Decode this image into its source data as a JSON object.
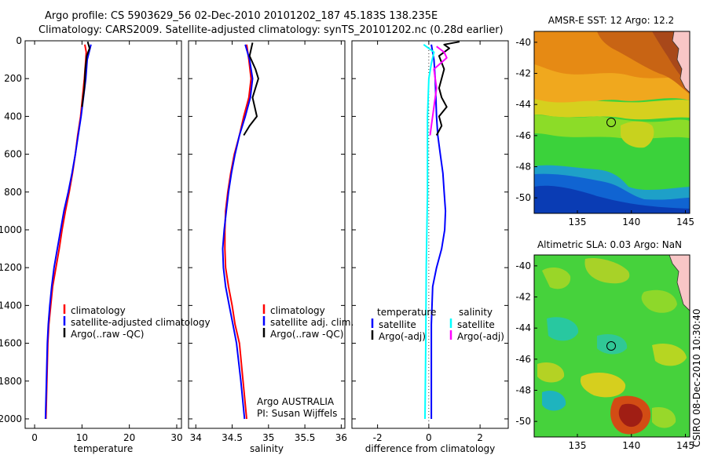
{
  "header": {
    "line1": "Argo profile: CS 5903629_56 02-Dec-2010 20101202_187 45.183S 138.235E",
    "line2": "Climatology: CARS2009. Satellite-adjusted climatology: synTS_20101202.nc (0.28d earlier)"
  },
  "side_label": "CSIRO 08-Dec-2010 10:30:40",
  "colors": {
    "red": "#ff0000",
    "blue": "#0000ff",
    "black": "#000000",
    "cyan": "#00ffff",
    "magenta": "#ff00ff"
  },
  "chart_data": [
    {
      "type": "line",
      "panel": "temperature",
      "xlabel": "temperature",
      "xlim": [
        -2,
        31
      ],
      "ylim": [
        2050,
        0
      ],
      "xticks": [
        0,
        10,
        20,
        30
      ],
      "yticks": [
        0,
        200,
        400,
        600,
        800,
        1000,
        1200,
        1400,
        1600,
        1800,
        2000
      ],
      "legend": [
        "climatology",
        "satellite-adjusted climatology",
        "Argo(..raw -QC)"
      ],
      "series": [
        {
          "name": "climatology",
          "color": "red",
          "points": [
            [
              10.6,
              20
            ],
            [
              10.9,
              60
            ],
            [
              10.8,
              100
            ],
            [
              10.5,
              200
            ],
            [
              10.1,
              300
            ],
            [
              9.7,
              400
            ],
            [
              9.1,
              500
            ],
            [
              8.6,
              600
            ],
            [
              8.0,
              700
            ],
            [
              7.3,
              800
            ],
            [
              6.5,
              900
            ],
            [
              5.8,
              1000
            ],
            [
              5.2,
              1100
            ],
            [
              4.5,
              1200
            ],
            [
              3.8,
              1300
            ],
            [
              3.4,
              1400
            ],
            [
              3.0,
              1500
            ],
            [
              2.8,
              1600
            ],
            [
              2.6,
              1800
            ],
            [
              2.4,
              2000
            ]
          ]
        },
        {
          "name": "satellite-adjusted climatology",
          "color": "blue",
          "points": [
            [
              11.9,
              20
            ],
            [
              11.5,
              60
            ],
            [
              11.1,
              100
            ],
            [
              10.8,
              200
            ],
            [
              10.3,
              300
            ],
            [
              9.8,
              400
            ],
            [
              9.2,
              500
            ],
            [
              8.6,
              600
            ],
            [
              7.9,
              700
            ],
            [
              7.1,
              800
            ],
            [
              6.2,
              900
            ],
            [
              5.5,
              1000
            ],
            [
              4.8,
              1100
            ],
            [
              4.1,
              1200
            ],
            [
              3.6,
              1300
            ],
            [
              3.2,
              1400
            ],
            [
              2.9,
              1500
            ],
            [
              2.7,
              1600
            ],
            [
              2.5,
              1800
            ],
            [
              2.3,
              2000
            ]
          ]
        },
        {
          "name": "Argo(..raw -QC)",
          "color": "black",
          "points": [
            [
              11.2,
              5
            ],
            [
              11.6,
              40
            ],
            [
              11.0,
              80
            ],
            [
              10.7,
              150
            ],
            [
              10.5,
              250
            ],
            [
              10.0,
              350
            ]
          ]
        }
      ]
    },
    {
      "type": "line",
      "panel": "salinity",
      "xlabel": "salinity",
      "xlim": [
        33.9,
        36.05
      ],
      "ylim": [
        2050,
        0
      ],
      "xticks": [
        34,
        34.5,
        35,
        35.5,
        36
      ],
      "legend": [
        "climatology",
        "satellite adj. clim.",
        "Argo(..raw -QC)"
      ],
      "annotation": [
        "Argo AUSTRALIA",
        "PI: Susan Wijffels"
      ],
      "series": [
        {
          "name": "climatology",
          "color": "red",
          "points": [
            [
              34.7,
              20
            ],
            [
              34.73,
              100
            ],
            [
              34.76,
              200
            ],
            [
              34.73,
              300
            ],
            [
              34.66,
              400
            ],
            [
              34.6,
              500
            ],
            [
              34.53,
              600
            ],
            [
              34.48,
              700
            ],
            [
              34.44,
              800
            ],
            [
              34.41,
              900
            ],
            [
              34.4,
              1000
            ],
            [
              34.4,
              1100
            ],
            [
              34.41,
              1200
            ],
            [
              34.45,
              1300
            ],
            [
              34.5,
              1400
            ],
            [
              34.54,
              1500
            ],
            [
              34.6,
              1600
            ],
            [
              34.65,
              1800
            ],
            [
              34.7,
              2000
            ]
          ]
        },
        {
          "name": "satellite adj. clim.",
          "color": "blue",
          "points": [
            [
              34.68,
              20
            ],
            [
              34.74,
              100
            ],
            [
              34.78,
              200
            ],
            [
              34.75,
              300
            ],
            [
              34.68,
              400
            ],
            [
              34.6,
              500
            ],
            [
              34.54,
              600
            ],
            [
              34.49,
              700
            ],
            [
              34.45,
              800
            ],
            [
              34.42,
              900
            ],
            [
              34.39,
              1000
            ],
            [
              34.37,
              1100
            ],
            [
              34.38,
              1200
            ],
            [
              34.41,
              1300
            ],
            [
              34.46,
              1400
            ],
            [
              34.51,
              1500
            ],
            [
              34.56,
              1600
            ],
            [
              34.62,
              1800
            ],
            [
              34.67,
              2000
            ]
          ]
        },
        {
          "name": "Argo(..raw -QC)",
          "color": "black",
          "points": [
            [
              34.78,
              10
            ],
            [
              34.74,
              80
            ],
            [
              34.82,
              150
            ],
            [
              34.86,
              200
            ],
            [
              34.78,
              300
            ],
            [
              34.84,
              400
            ],
            [
              34.74,
              450
            ],
            [
              34.66,
              500
            ]
          ]
        }
      ]
    },
    {
      "type": "line",
      "panel": "difference",
      "xlabel": "difference from climatology",
      "xlim": [
        -3,
        3.1
      ],
      "ylim": [
        2050,
        0
      ],
      "xticks": [
        -2,
        0,
        2
      ],
      "legend_left_title": "temperature",
      "legend_right_title": "salinity",
      "legend": [
        "satellite",
        "Argo(-adj)",
        "satellite",
        "Argo(-adj)"
      ],
      "series": [
        {
          "name": "temperature satellite",
          "color": "blue",
          "points": [
            [
              0.1,
              20
            ],
            [
              0.2,
              100
            ],
            [
              0.25,
              200
            ],
            [
              0.3,
              400
            ],
            [
              0.35,
              500
            ],
            [
              0.45,
              600
            ],
            [
              0.55,
              700
            ],
            [
              0.6,
              800
            ],
            [
              0.65,
              900
            ],
            [
              0.62,
              1000
            ],
            [
              0.5,
              1100
            ],
            [
              0.3,
              1200
            ],
            [
              0.15,
              1300
            ],
            [
              0.1,
              1500
            ],
            [
              0.1,
              2000
            ]
          ]
        },
        {
          "name": "temperature Argo(-adj)",
          "color": "black",
          "points": [
            [
              1.2,
              5
            ],
            [
              0.6,
              20
            ],
            [
              0.8,
              40
            ],
            [
              0.4,
              80
            ],
            [
              0.6,
              150
            ],
            [
              0.4,
              250
            ],
            [
              0.5,
              300
            ],
            [
              0.7,
              350
            ],
            [
              0.4,
              400
            ],
            [
              0.5,
              450
            ],
            [
              0.3,
              500
            ]
          ]
        },
        {
          "name": "salinity satellite",
          "color": "cyan",
          "points": [
            [
              -0.2,
              20
            ],
            [
              0.2,
              60
            ],
            [
              0.1,
              120
            ],
            [
              0.0,
              200
            ],
            [
              -0.05,
              400
            ],
            [
              -0.05,
              800
            ],
            [
              -0.1,
              1200
            ],
            [
              -0.12,
              1600
            ],
            [
              -0.15,
              2000
            ]
          ]
        },
        {
          "name": "salinity Argo(-adj)",
          "color": "magenta",
          "points": [
            [
              0.3,
              30
            ],
            [
              0.6,
              60
            ],
            [
              0.7,
              90
            ],
            [
              0.2,
              150
            ],
            [
              0.3,
              250
            ],
            [
              0.2,
              350
            ],
            [
              0.1,
              450
            ],
            [
              0.05,
              500
            ]
          ]
        }
      ]
    },
    {
      "type": "heatmap",
      "panel": "sst_map",
      "title": "AMSR-E SST: 12 Argo: 12.2",
      "xlim": [
        131,
        145.4
      ],
      "ylim": [
        -51,
        -39.3
      ],
      "xticks": [
        135,
        140,
        145
      ],
      "yticks": [
        -40,
        -42,
        -44,
        -46,
        -48,
        -50
      ],
      "marker": [
        138.235,
        -45.183
      ]
    },
    {
      "type": "heatmap",
      "panel": "sla_map",
      "title": "Altimetric SLA: 0.03 Argo: NaN",
      "xlim": [
        131,
        145.4
      ],
      "ylim": [
        -51,
        -39.3
      ],
      "xticks": [
        135,
        140,
        145
      ],
      "yticks": [
        -40,
        -42,
        -44,
        -46,
        -48,
        -50
      ],
      "marker": [
        138.235,
        -45.183
      ]
    }
  ]
}
